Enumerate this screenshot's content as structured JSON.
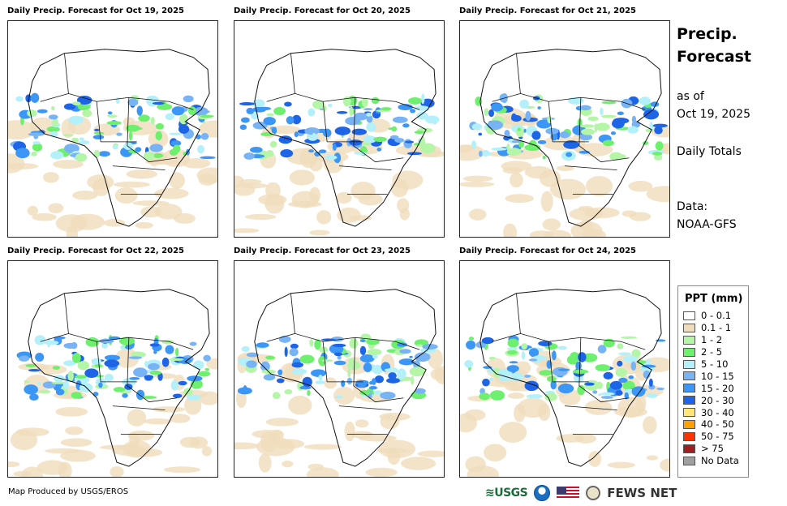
{
  "panels": [
    {
      "title": "Daily Precip. Forecast for Oct 19, 2025"
    },
    {
      "title": "Daily Precip. Forecast for Oct 20, 2025"
    },
    {
      "title": "Daily Precip. Forecast for Oct 21, 2025"
    },
    {
      "title": "Daily Precip. Forecast for Oct 22, 2025"
    },
    {
      "title": "Daily Precip. Forecast for Oct 23, 2025"
    },
    {
      "title": "Daily Precip. Forecast for Oct 24, 2025"
    }
  ],
  "side": {
    "title_line1": "Precip.",
    "title_line2": "Forecast",
    "as_of_label": "as of",
    "as_of_date": "Oct 19, 2025",
    "totals": "Daily Totals",
    "data_label": "Data:",
    "data_source": "NOAA-GFS"
  },
  "legend": {
    "title": "PPT (mm)",
    "items": [
      {
        "label": "0 - 0.1",
        "color": "#ffffff"
      },
      {
        "label": "0.1 - 1",
        "color": "#f0dcbc"
      },
      {
        "label": "1 - 2",
        "color": "#b4f5a8"
      },
      {
        "label": "2 - 5",
        "color": "#6eef6e"
      },
      {
        "label": "5 - 10",
        "color": "#b4f0fa"
      },
      {
        "label": "10 - 15",
        "color": "#78b4f5"
      },
      {
        "label": "15 - 20",
        "color": "#3c96f5"
      },
      {
        "label": "20 - 30",
        "color": "#1e64e6"
      },
      {
        "label": "30 - 40",
        "color": "#ffe678"
      },
      {
        "label": "40 - 50",
        "color": "#ffa000"
      },
      {
        "label": "50 - 75",
        "color": "#ff3200"
      },
      {
        "label": "> 75",
        "color": "#a01e1e"
      },
      {
        "label": "No Data",
        "color": "#a0a0a0"
      }
    ]
  },
  "footer": {
    "credit": "Map Produced by USGS/EROS",
    "usgs": "≋USGS",
    "fews": "FEWS NET"
  }
}
